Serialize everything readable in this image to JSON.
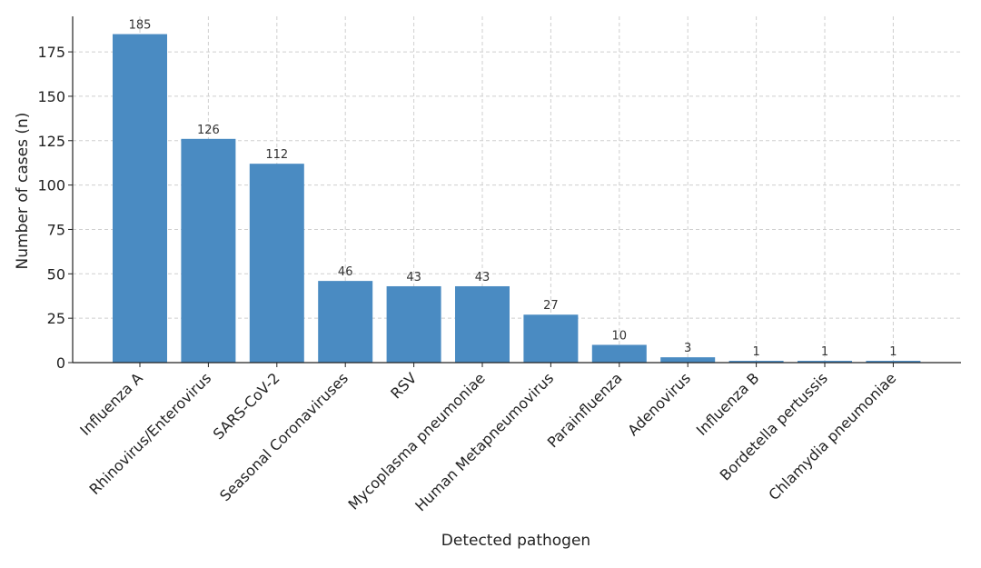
{
  "chart_data": {
    "type": "bar",
    "title": "",
    "xlabel": "Detected pathogen",
    "ylabel": "Number of cases (n)",
    "categories": [
      "Influenza A",
      "Rhinovirus/Enterovirus",
      "SARS-CoV-2",
      "Seasonal Coronaviruses",
      "RSV",
      "Mycoplasma pneumoniae",
      "Human Metapneumovirus",
      "Parainfluenza",
      "Adenovirus",
      "Influenza B",
      "Bordetella pertussis",
      "Chlamydia pneumoniae"
    ],
    "values": [
      185,
      126,
      112,
      46,
      43,
      43,
      27,
      10,
      3,
      1,
      1,
      1
    ],
    "ylim": [
      0,
      195
    ],
    "yticks": [
      0,
      25,
      50,
      75,
      100,
      125,
      150,
      175
    ],
    "grid": true,
    "bar_color": "#4a8bc2",
    "show_value_labels": true
  }
}
